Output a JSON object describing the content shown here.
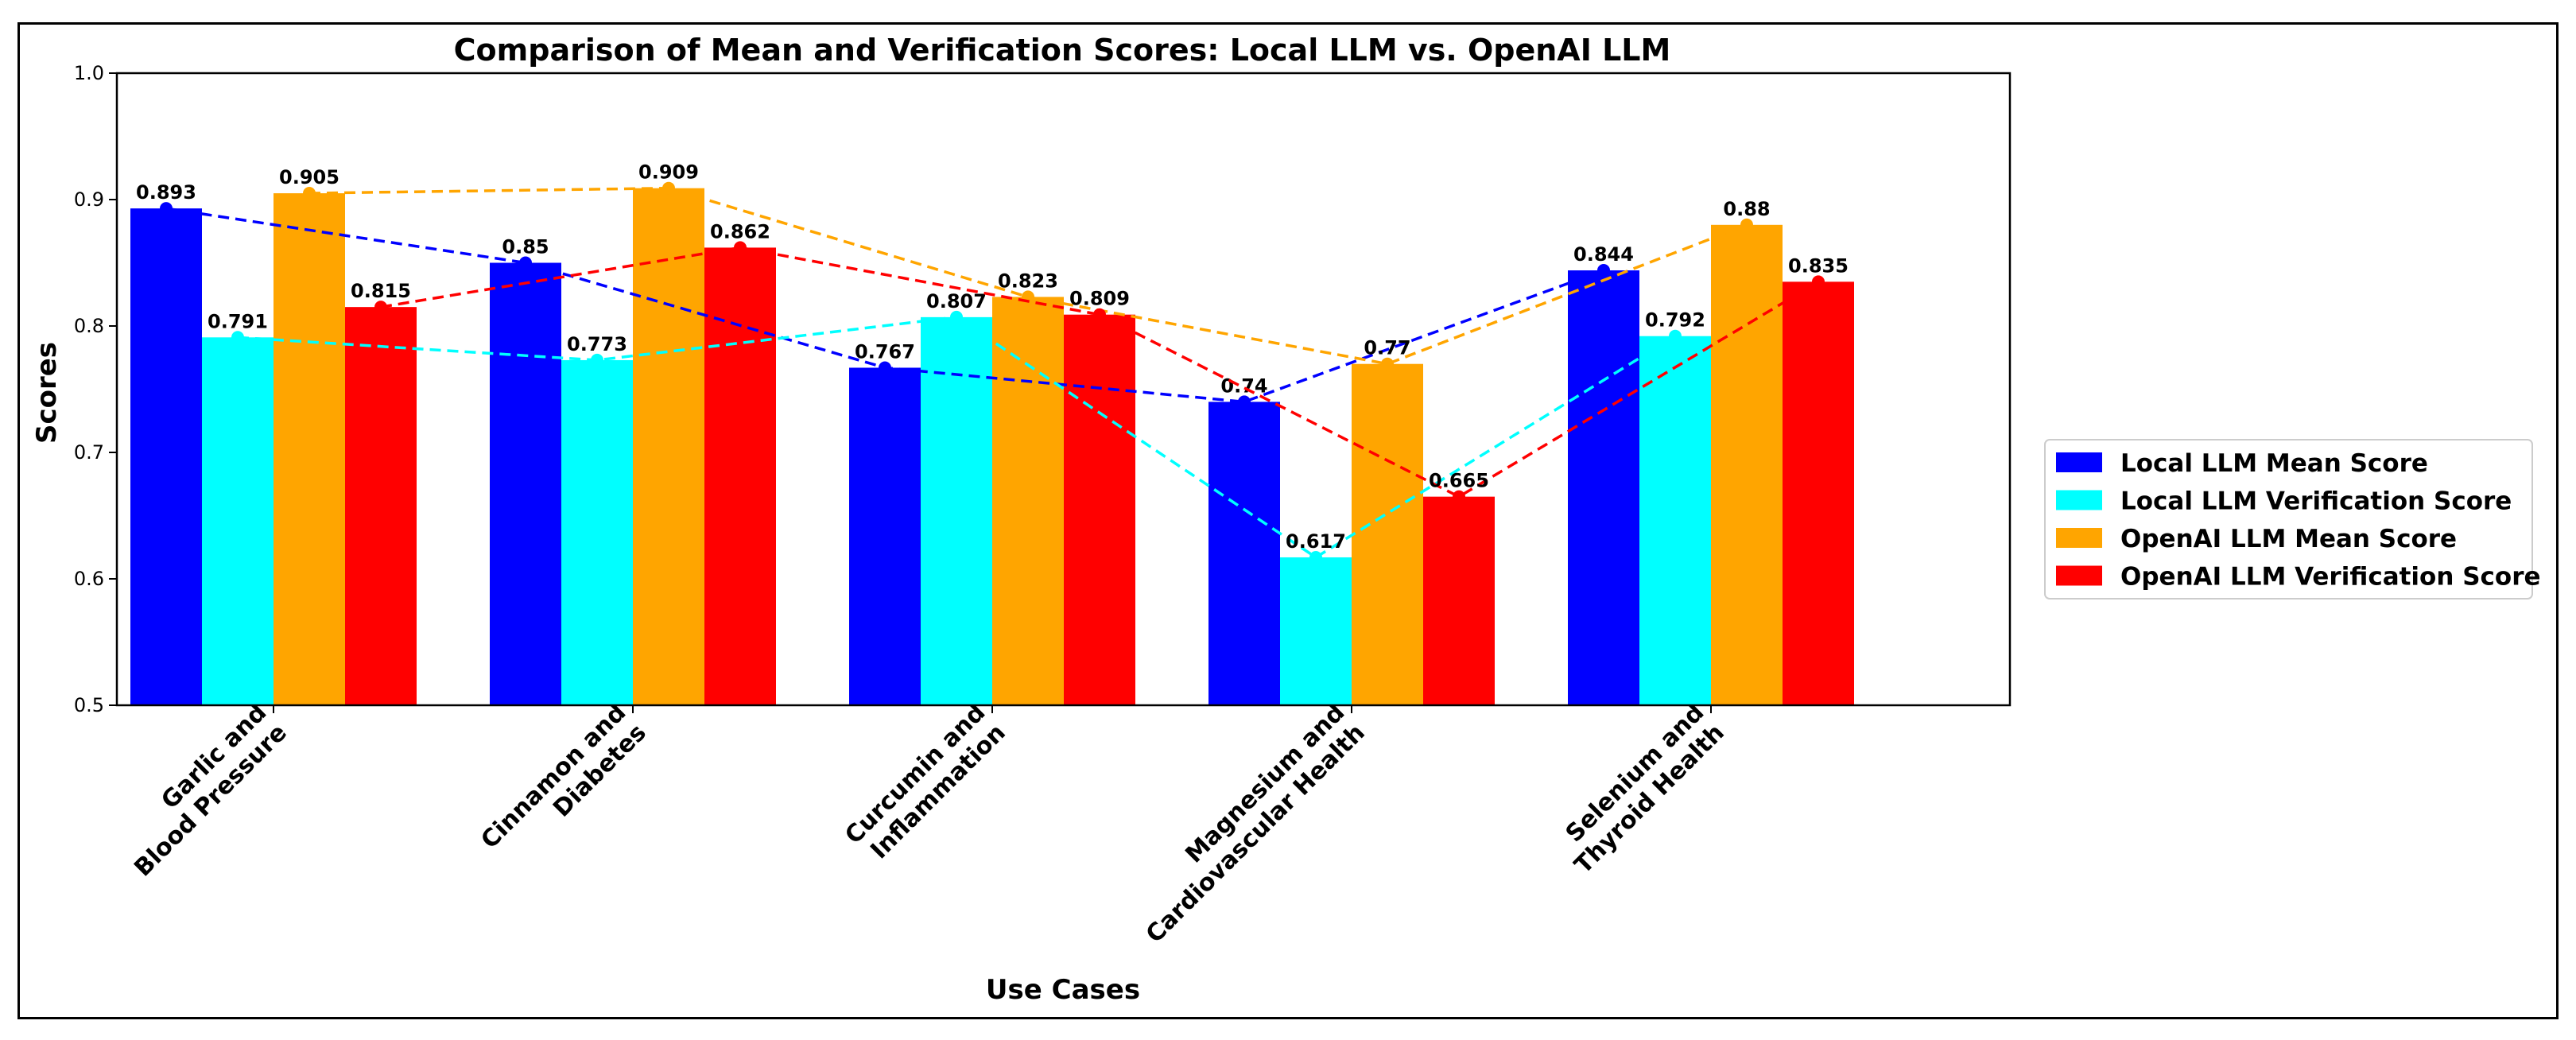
{
  "chart_data": {
    "type": "bar",
    "title": "Comparison of Mean and Verification Scores: Local LLM vs. OpenAI LLM",
    "xlabel": "Use Cases",
    "ylabel": "Scores",
    "ylim": [
      0.5,
      1.0
    ],
    "yticks": [
      "0.5",
      "0.6",
      "0.7",
      "0.8",
      "0.9",
      "1.0"
    ],
    "categories": [
      [
        "Garlic and",
        "Blood Pressure"
      ],
      [
        "Cinnamon and",
        "Diabetes"
      ],
      [
        "Curcumin and",
        "Inflammation"
      ],
      [
        "Magnesium and",
        "Cardiovascular Health"
      ],
      [
        "Selenium and",
        "Thyroid Health"
      ]
    ],
    "series": [
      {
        "name": "Local LLM Mean Score",
        "color": "#0000ff",
        "values": [
          0.893,
          0.85,
          0.767,
          0.74,
          0.844
        ],
        "labels": [
          "0.893",
          "0.85",
          "0.767",
          "0.74",
          "0.844"
        ]
      },
      {
        "name": "Local LLM Verification Score",
        "color": "#00ffff",
        "values": [
          0.791,
          0.773,
          0.807,
          0.617,
          0.792
        ],
        "labels": [
          "0.791",
          "0.773",
          "0.807",
          "0.617",
          "0.792"
        ]
      },
      {
        "name": "OpenAI LLM Mean Score",
        "color": "#ffa500",
        "values": [
          0.905,
          0.909,
          0.823,
          0.77,
          0.88
        ],
        "labels": [
          "0.905",
          "0.909",
          "0.823",
          "0.77",
          "0.88"
        ]
      },
      {
        "name": "OpenAI LLM Verification Score",
        "color": "#ff0000",
        "values": [
          0.815,
          0.862,
          0.809,
          0.665,
          0.835
        ],
        "labels": [
          "0.815",
          "0.862",
          "0.809",
          "0.665",
          "0.835"
        ]
      }
    ],
    "legend_position": "right",
    "grid": false,
    "trend_lines": "dashed"
  }
}
